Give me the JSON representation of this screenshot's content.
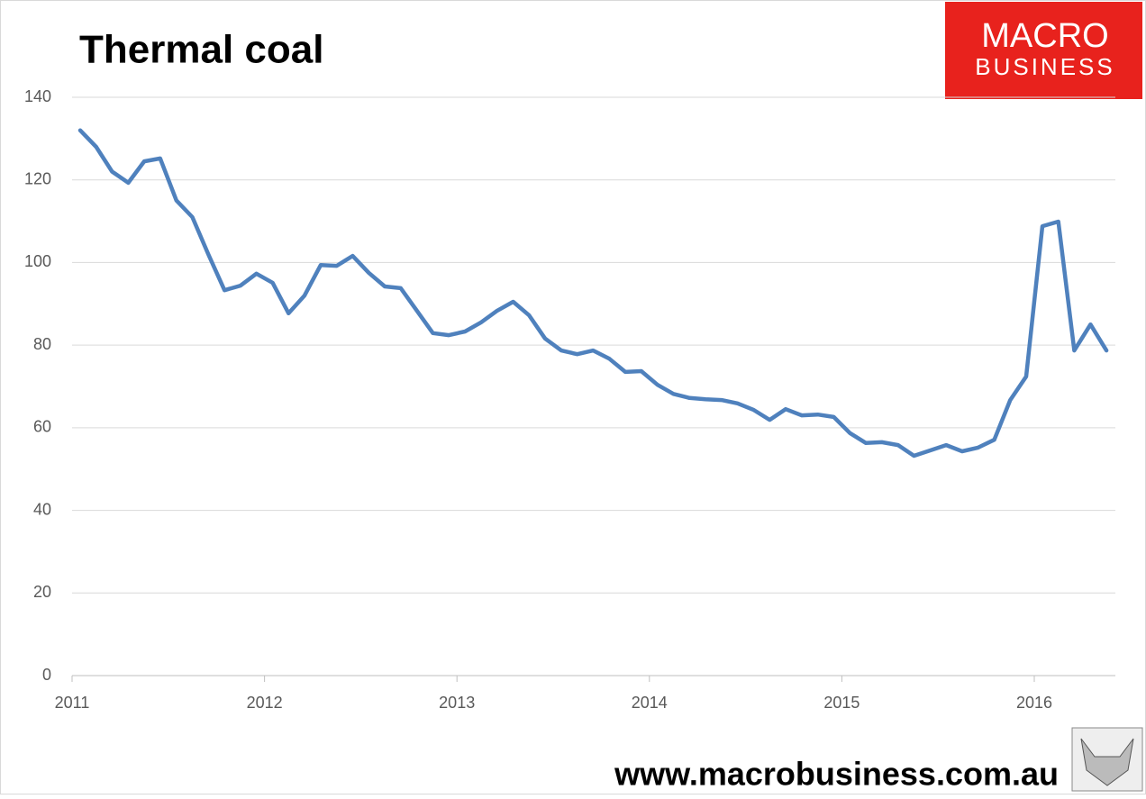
{
  "chart_data": {
    "type": "line",
    "title": "Thermal coal",
    "x": [
      2011.042,
      2011.125,
      2011.208,
      2011.292,
      2011.375,
      2011.458,
      2011.542,
      2011.625,
      2011.708,
      2011.792,
      2011.875,
      2011.958,
      2012.042,
      2012.125,
      2012.208,
      2012.292,
      2012.375,
      2012.458,
      2012.542,
      2012.625,
      2012.708,
      2012.792,
      2012.875,
      2012.958,
      2013.042,
      2013.125,
      2013.208,
      2013.292,
      2013.375,
      2013.458,
      2013.542,
      2013.625,
      2013.708,
      2013.792,
      2013.875,
      2013.958,
      2014.042,
      2014.125,
      2014.208,
      2014.292,
      2014.375,
      2014.458,
      2014.542,
      2014.625,
      2014.708,
      2014.792,
      2014.875,
      2014.958,
      2015.042,
      2015.125,
      2015.208,
      2015.292,
      2015.375,
      2015.458,
      2015.542,
      2015.625,
      2015.708,
      2015.792,
      2015.875,
      2015.958,
      2016.042,
      2016.125,
      2016.208,
      2016.292,
      2016.375
    ],
    "values": [
      132,
      128,
      122,
      119.3,
      124.5,
      125.2,
      115,
      111,
      102,
      93.3,
      94.4,
      97.3,
      95.1,
      87.7,
      92,
      99.4,
      99.2,
      101.6,
      97.5,
      94.2,
      93.8,
      88.3,
      82.9,
      82.4,
      83.3,
      85.5,
      88.3,
      90.5,
      87.2,
      81.6,
      78.7,
      77.8,
      78.7,
      76.7,
      73.5,
      73.7,
      70.4,
      68.2,
      67.2,
      66.9,
      66.7,
      65.9,
      64.3,
      61.9,
      64.5,
      63,
      63.2,
      62.6,
      58.7,
      56.3,
      56.5,
      55.8,
      53.2,
      54.5,
      55.8,
      54.3,
      55.2,
      57.1,
      66.7,
      72.4,
      108.8,
      109.9,
      78.7,
      85,
      78.7
    ],
    "color": "#4f81bd",
    "xlim": [
      2011,
      2016.42
    ],
    "xticks": [
      2011,
      2012,
      2013,
      2014,
      2015,
      2016
    ],
    "ylim": [
      0,
      140
    ],
    "yticks": [
      0,
      20,
      40,
      60,
      80,
      100,
      120,
      140
    ],
    "grid": true
  },
  "logo": {
    "line1": "MACRO",
    "line2": "BUSINESS"
  },
  "footer": "www.macrobusiness.com.au"
}
